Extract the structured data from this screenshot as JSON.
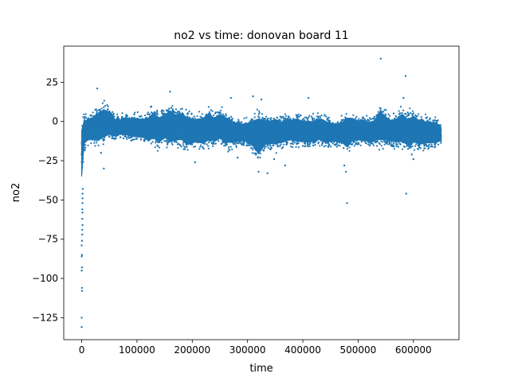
{
  "chart_data": {
    "type": "scatter",
    "title": "no2 vs time: donovan board 11",
    "xlabel": "time",
    "ylabel": "no2",
    "xlim": [
      -32500,
      682500
    ],
    "ylim": [
      -139,
      48
    ],
    "x_ticks": [
      {
        "value": 0,
        "label": "0"
      },
      {
        "value": 100000,
        "label": "100000"
      },
      {
        "value": 200000,
        "label": "200000"
      },
      {
        "value": 300000,
        "label": "300000"
      },
      {
        "value": 400000,
        "label": "400000"
      },
      {
        "value": 500000,
        "label": "500000"
      },
      {
        "value": 600000,
        "label": "600000"
      }
    ],
    "y_ticks": [
      {
        "value": 25,
        "label": "25"
      },
      {
        "value": 0,
        "label": "0"
      },
      {
        "value": -25,
        "label": "−25"
      },
      {
        "value": -50,
        "label": "−50"
      },
      {
        "value": -75,
        "label": "−75"
      },
      {
        "value": -100,
        "label": "−100"
      },
      {
        "value": -125,
        "label": "−125"
      }
    ],
    "grid": false,
    "legend": "none",
    "series": [
      {
        "color": "#1f77b4",
        "x_range": [
          0,
          650000
        ],
        "band_points": [
          [
            0,
            -45,
            8
          ],
          [
            2000,
            -30,
            8
          ],
          [
            5000,
            -18,
            9
          ],
          [
            10000,
            -15,
            8
          ],
          [
            20000,
            -14,
            10
          ],
          [
            30000,
            -16,
            14
          ],
          [
            40000,
            -15,
            17
          ],
          [
            50000,
            -12,
            13
          ],
          [
            60000,
            -12,
            8
          ],
          [
            70000,
            -10,
            7
          ],
          [
            80000,
            -11,
            9
          ],
          [
            90000,
            -12,
            8
          ],
          [
            100000,
            -13,
            9
          ],
          [
            110000,
            -12,
            8
          ],
          [
            120000,
            -16,
            10
          ],
          [
            130000,
            -15,
            14
          ],
          [
            140000,
            -18,
            11
          ],
          [
            150000,
            -14,
            12
          ],
          [
            160000,
            -19,
            17
          ],
          [
            170000,
            -17,
            13
          ],
          [
            180000,
            -16,
            14
          ],
          [
            190000,
            -20,
            12
          ],
          [
            200000,
            -18,
            10
          ],
          [
            210000,
            -17,
            9
          ],
          [
            220000,
            -19,
            11
          ],
          [
            230000,
            -16,
            14
          ],
          [
            240000,
            -17,
            10
          ],
          [
            250000,
            -15,
            13
          ],
          [
            260000,
            -18,
            11
          ],
          [
            270000,
            -17,
            8
          ],
          [
            280000,
            -16,
            6
          ],
          [
            290000,
            -15,
            5
          ],
          [
            300000,
            -16,
            6
          ],
          [
            310000,
            -20,
            9
          ],
          [
            320000,
            -28,
            13
          ],
          [
            330000,
            -20,
            10
          ],
          [
            340000,
            -18,
            8
          ],
          [
            350000,
            -19,
            10
          ],
          [
            360000,
            -17,
            7
          ],
          [
            370000,
            -16,
            9
          ],
          [
            380000,
            -15,
            8
          ],
          [
            390000,
            -17,
            10
          ],
          [
            400000,
            -16,
            7
          ],
          [
            410000,
            -17,
            8
          ],
          [
            420000,
            -16,
            7
          ],
          [
            430000,
            -15,
            9
          ],
          [
            440000,
            -17,
            8
          ],
          [
            450000,
            -16,
            6
          ],
          [
            460000,
            -15,
            5
          ],
          [
            470000,
            -16,
            6
          ],
          [
            480000,
            -22,
            12
          ],
          [
            490000,
            -16,
            10
          ],
          [
            500000,
            -15,
            7
          ],
          [
            510000,
            -15,
            8
          ],
          [
            520000,
            -16,
            6
          ],
          [
            530000,
            -15,
            8
          ],
          [
            540000,
            -17,
            16
          ],
          [
            550000,
            -16,
            11
          ],
          [
            560000,
            -16,
            8
          ],
          [
            570000,
            -17,
            10
          ],
          [
            580000,
            -18,
            14
          ],
          [
            590000,
            -20,
            10
          ],
          [
            600000,
            -17,
            12
          ],
          [
            610000,
            -19,
            9
          ],
          [
            620000,
            -18,
            8
          ],
          [
            630000,
            -17,
            7
          ],
          [
            640000,
            -17,
            7
          ],
          [
            650000,
            -14,
            2
          ]
        ],
        "outliers": [
          [
            0,
            -131
          ],
          [
            0,
            -125
          ],
          [
            500,
            -108
          ],
          [
            500,
            -106
          ],
          [
            0,
            -95
          ],
          [
            500,
            -93
          ],
          [
            0,
            -86
          ],
          [
            500,
            -85
          ],
          [
            0,
            -79
          ],
          [
            500,
            -76
          ],
          [
            1000,
            -72
          ],
          [
            1000,
            -69
          ],
          [
            1500,
            -66
          ],
          [
            1000,
            -62
          ],
          [
            1500,
            -58
          ],
          [
            1000,
            -56
          ],
          [
            1500,
            -52
          ],
          [
            1500,
            -49
          ],
          [
            1500,
            -46
          ],
          [
            2000,
            -43
          ],
          [
            28000,
            21
          ],
          [
            40000,
            -30
          ],
          [
            160000,
            19
          ],
          [
            35000,
            -20
          ],
          [
            180000,
            -16
          ],
          [
            205000,
            -26
          ],
          [
            270000,
            15
          ],
          [
            282000,
            -23
          ],
          [
            310000,
            16
          ],
          [
            320000,
            -32
          ],
          [
            325000,
            14
          ],
          [
            336000,
            -33
          ],
          [
            348000,
            -24
          ],
          [
            368000,
            -28
          ],
          [
            410000,
            15
          ],
          [
            475000,
            -28
          ],
          [
            480000,
            -52
          ],
          [
            478000,
            -32
          ],
          [
            541000,
            40
          ],
          [
            582000,
            15
          ],
          [
            586000,
            29
          ],
          [
            587000,
            -46
          ],
          [
            597000,
            -21
          ],
          [
            600000,
            -24
          ]
        ]
      }
    ]
  }
}
